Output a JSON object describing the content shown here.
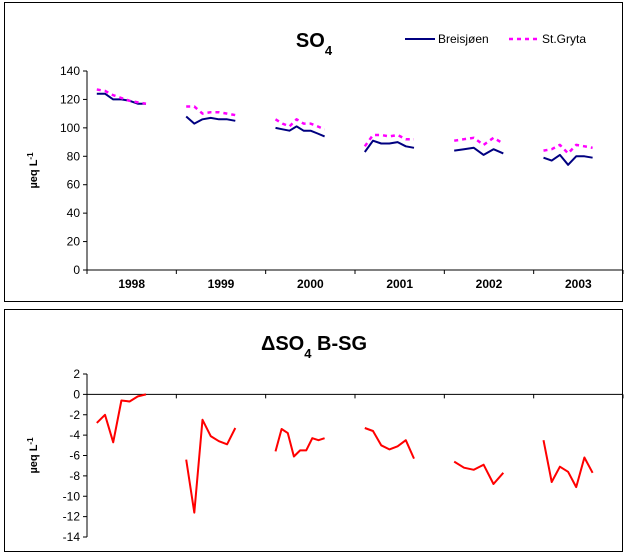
{
  "chart_data": [
    {
      "type": "line",
      "title": "SO",
      "title_subscript": "4",
      "xlabel": "",
      "ylabel": "µeq L",
      "ylabel_superscript": "-1",
      "categories": [
        "1998",
        "1999",
        "2000",
        "2001",
        "2002",
        "2003"
      ],
      "yticks": [
        "0",
        "20",
        "40",
        "60",
        "80",
        "100",
        "120",
        "140"
      ],
      "ylim": [
        0,
        140
      ],
      "grid": false,
      "legend": "top-right",
      "series": [
        {
          "name": "Breisjøen",
          "color": "#000080",
          "style": "solid",
          "segments": [
            [
              124,
              124,
              120,
              120,
              119,
              117,
              117
            ],
            [
              108,
              103,
              106,
              107,
              106,
              106,
              105
            ],
            [
              100,
              99,
              98,
              101,
              98,
              98,
              96,
              94
            ],
            [
              83,
              91,
              89,
              89,
              90,
              87,
              86
            ],
            [
              84,
              85,
              86,
              81,
              85,
              82
            ],
            [
              79,
              77,
              81,
              74,
              80,
              80,
              79
            ]
          ]
        },
        {
          "name": "St.Gryta",
          "color": "#ff00ff",
          "style": "dashed",
          "segments": [
            [
              127,
              126,
              123,
              121,
              119,
              118,
              117
            ],
            [
              115,
              115,
              110,
              111,
              111,
              110,
              109
            ],
            [
              106,
              103,
              101,
              106,
              103,
              103,
              101,
              99
            ],
            [
              87,
              95,
              95,
              94,
              95,
              92,
              92
            ],
            [
              91,
              92,
              93,
              88,
              93,
              89
            ],
            [
              84,
              85,
              88,
              82,
              88,
              87,
              86
            ]
          ]
        }
      ]
    },
    {
      "type": "line",
      "title": "ΔSO",
      "title_subscript": "4",
      "title_suffix": " B-SG",
      "xlabel": "",
      "ylabel": "µeq L",
      "ylabel_superscript": "-1",
      "categories": [
        "1998",
        "1999",
        "2000",
        "2001",
        "2002",
        "2003"
      ],
      "yticks": [
        "2",
        "0",
        "-2",
        "-4",
        "-6",
        "-8",
        "-10",
        "-12",
        "-14"
      ],
      "ylim": [
        -14,
        2
      ],
      "grid": false,
      "legend": "none",
      "series": [
        {
          "color": "#ff0000",
          "style": "solid",
          "segments": [
            [
              -2.8,
              -2.0,
              -4.7,
              -0.6,
              -0.7,
              -0.2,
              0.0
            ],
            [
              -6.4,
              -11.6,
              -2.5,
              -4.1,
              -4.6,
              -4.9,
              -3.3
            ],
            [
              -5.6,
              -3.4,
              -3.8,
              -6.1,
              -5.5,
              -5.5,
              -4.3,
              -4.5,
              -4.3
            ],
            [
              -3.3,
              -3.6,
              -5.0,
              -5.4,
              -5.1,
              -4.5,
              -6.3
            ],
            [
              -6.6,
              -7.2,
              -7.4,
              -6.9,
              -8.8,
              -7.7
            ],
            [
              -4.5,
              -8.6,
              -7.1,
              -7.6,
              -9.1,
              -6.2,
              -7.7
            ]
          ]
        }
      ]
    }
  ]
}
